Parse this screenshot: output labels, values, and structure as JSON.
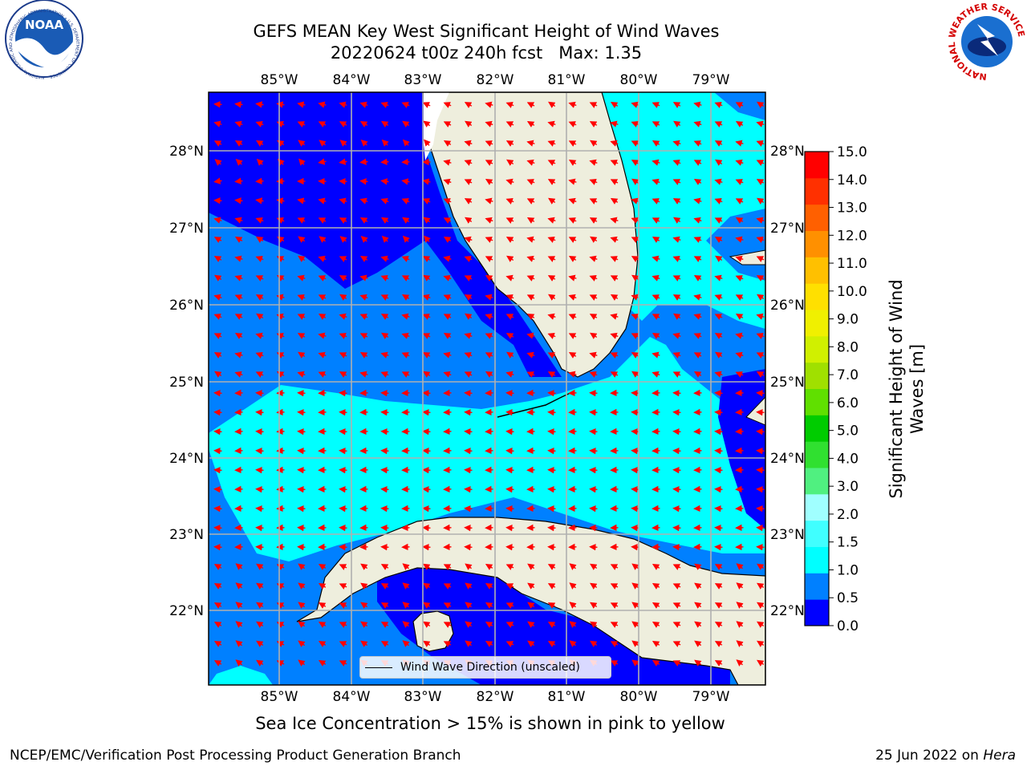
{
  "title": {
    "line1": "GEFS MEAN Key West Significant Height of Wind Waves",
    "line2": "20220624 t00z 240h fcst   Max: 1.35"
  },
  "map": {
    "lon_ticks": [
      "85°W",
      "84°W",
      "83°W",
      "82°W",
      "81°W",
      "80°W",
      "79°W"
    ],
    "lat_ticks": [
      "28°N",
      "27°N",
      "26°N",
      "25°N",
      "24°N",
      "23°N",
      "22°N"
    ],
    "land_color": "#eeeedd",
    "arrow_color": "#ff0000",
    "legend_label": "Wind Wave Direction (unscaled)"
  },
  "colorbar": {
    "label_line1": "Significant Height of Wind",
    "label_line2": "Waves [m]",
    "ticks": [
      "15.0",
      "14.0",
      "13.0",
      "12.0",
      "11.0",
      "10.0",
      "9.0",
      "8.0",
      "7.0",
      "6.0",
      "5.0",
      "4.0",
      "3.0",
      "2.0",
      "1.5",
      "1.0",
      "0.5",
      "0.0"
    ],
    "colors": [
      "#0000ff",
      "#0080ff",
      "#00ffff",
      "#40ffff",
      "#a0ffff",
      "#50f080",
      "#30e030",
      "#00cc00",
      "#60e000",
      "#a0e000",
      "#d0f000",
      "#f0f000",
      "#ffe000",
      "#ffc000",
      "#ff9000",
      "#ff6000",
      "#ff3000",
      "#ff0000"
    ]
  },
  "footer": {
    "note": "Sea Ice Concentration > 15% is shown in pink to yellow",
    "credit_left": "NCEP/EMC/Verification Post Processing Product Generation Branch",
    "credit_right_date": "25 Jun 2022 on ",
    "credit_right_host": "Hera"
  },
  "logos": {
    "left_text": "NOAA",
    "left_ring_text": "NATIONAL OCEANIC AND ATMOSPHERIC ADMINISTRATION • U.S. DEPARTMENT OF COMMERCE",
    "right_ring_text": "NATIONAL WEATHER SERVICE"
  }
}
